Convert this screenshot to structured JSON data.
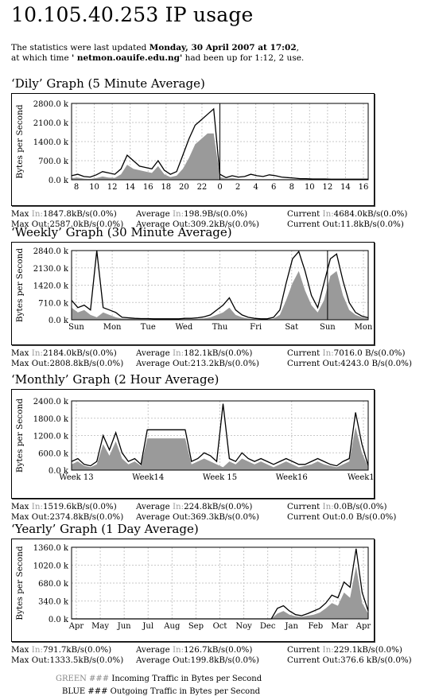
{
  "page": {
    "title": "10.105.40.253 IP usage",
    "intro_prefix": "The statistics were last updated ",
    "intro_date": "Monday, 30 April 2007 at 17:02",
    "intro_middle": ",",
    "intro_line2_prefix": "at which time ",
    "intro_host": "' netmon.oauife.edu.ng'",
    "intro_uptime": " had been up for 1:12, 2 use."
  },
  "colors": {
    "incoming": "#9a9a9a",
    "outgoing": "#000000",
    "grid": "#c8c8c8",
    "vline": "#000000"
  },
  "legend": {
    "green_label": "GREEN ###",
    "green_text": " Incoming Traffic in Bytes per Second",
    "blue_label": "BLUE ###",
    "blue_text": " Outgoing Traffic in Bytes per Second"
  },
  "chart_data": [
    {
      "type": "area",
      "title": "‘Dily’ Graph (5 Minute Average)",
      "ylabel": "Bytes per Second",
      "ylim": [
        0,
        2800
      ],
      "yticks": [
        "0.0 k",
        "700.0 k",
        "1400.0 k",
        "2100.0 k",
        "2800.0 k"
      ],
      "xticks": [
        "8",
        "10",
        "12",
        "14",
        "16",
        "18",
        "20",
        "22",
        "0",
        "2",
        "4",
        "6",
        "8",
        "10",
        "12",
        "14",
        "16"
      ],
      "vline_index": 8,
      "series": [
        {
          "name": "In",
          "values": [
            60,
            80,
            40,
            30,
            60,
            120,
            80,
            70,
            200,
            550,
            400,
            350,
            300,
            250,
            500,
            200,
            100,
            150,
            400,
            800,
            1300,
            1500,
            1700,
            1700,
            100,
            40,
            60,
            30,
            20,
            20,
            20,
            20,
            20,
            20,
            20,
            20,
            20,
            20,
            20,
            20,
            20,
            20,
            20,
            20,
            20,
            20,
            20,
            20,
            20
          ]
        },
        {
          "name": "Out",
          "values": [
            150,
            200,
            120,
            100,
            180,
            300,
            250,
            200,
            400,
            900,
            700,
            500,
            450,
            400,
            700,
            350,
            200,
            300,
            900,
            1500,
            2000,
            2200,
            2400,
            2600,
            200,
            80,
            150,
            100,
            120,
            200,
            150,
            120,
            180,
            150,
            100,
            80,
            60,
            40,
            40,
            30,
            30,
            30,
            20,
            20,
            20,
            20,
            20,
            20,
            20
          ]
        }
      ],
      "stats": {
        "max_in": "1847.8kB/s(0.0%)",
        "avg_in": "198.9B/s(0.0%)",
        "cur_in": "4684.0kB/s(0.0%)",
        "max_out": "2587.0kB/s(0.0%)",
        "avg_out": "309.2kB/s(0.0%)",
        "cur_out": "11.8kB/s(0.0%)"
      }
    },
    {
      "type": "area",
      "title": "‘Weekly’ Graph (30 Minute Average)",
      "ylabel": "Bytes per Second",
      "ylim": [
        0,
        2840
      ],
      "yticks": [
        "0.0 k",
        "710.0 k",
        "1420.0 k",
        "2130.0 k",
        "2840.0 k"
      ],
      "xticks": [
        "Sun",
        "Mon",
        "Tue",
        "Wed",
        "Thu",
        "Fri",
        "Sat",
        "Sun",
        "Mon"
      ],
      "vline_index": 7,
      "series": [
        {
          "name": "In",
          "values": [
            500,
            300,
            400,
            200,
            100,
            300,
            200,
            100,
            50,
            50,
            40,
            30,
            30,
            20,
            20,
            20,
            20,
            20,
            30,
            30,
            40,
            60,
            100,
            200,
            300,
            500,
            200,
            100,
            50,
            30,
            20,
            20,
            50,
            200,
            800,
            1500,
            2000,
            1200,
            600,
            300,
            800,
            1800,
            2000,
            1000,
            400,
            200,
            100,
            50
          ]
        },
        {
          "name": "Out",
          "values": [
            800,
            500,
            600,
            400,
            2840,
            500,
            400,
            300,
            100,
            80,
            60,
            50,
            50,
            40,
            40,
            40,
            40,
            40,
            60,
            60,
            80,
            120,
            200,
            400,
            600,
            900,
            400,
            200,
            100,
            60,
            40,
            40,
            100,
            400,
            1500,
            2500,
            2800,
            2000,
            1000,
            500,
            1500,
            2500,
            2700,
            1600,
            700,
            300,
            150,
            80
          ]
        }
      ],
      "stats": {
        "max_in": "2184.0kB/s(0.0%)",
        "avg_in": "182.1kB/s(0.0%)",
        "cur_in": "7016.0 B/s(0.0%)",
        "max_out": "2808.8kB/s(0.0%)",
        "avg_out": "213.2kB/s(0.0%)",
        "cur_out": "4243.0 B/s(0.0%)"
      }
    },
    {
      "type": "area",
      "title": "‘Monthly’ Graph (2 Hour Average)",
      "ylabel": "Bytes per Second",
      "ylim": [
        0,
        2400
      ],
      "yticks": [
        "0.0 k",
        "600.0 k",
        "1200.0 k",
        "1800.0 k",
        "2400.0 k"
      ],
      "xticks": [
        "Week 13",
        "Week14",
        "Week 15",
        "Week16",
        "Week17"
      ],
      "series": [
        {
          "name": "In",
          "values": [
            200,
            300,
            150,
            100,
            200,
            900,
            500,
            1000,
            400,
            200,
            300,
            150,
            1100,
            1100,
            1100,
            1100,
            1100,
            1100,
            1100,
            200,
            300,
            400,
            300,
            200,
            100,
            300,
            200,
            400,
            300,
            200,
            300,
            200,
            100,
            200,
            300,
            200,
            100,
            150,
            200,
            300,
            200,
            150,
            100,
            200,
            300,
            1500,
            600,
            100
          ]
        },
        {
          "name": "Out",
          "values": [
            300,
            400,
            200,
            150,
            300,
            1200,
            700,
            1300,
            600,
            300,
            400,
            200,
            1400,
            1400,
            1400,
            1400,
            1400,
            1400,
            1400,
            300,
            400,
            600,
            500,
            300,
            2300,
            400,
            300,
            600,
            400,
            300,
            400,
            300,
            200,
            300,
            400,
            300,
            200,
            200,
            300,
            400,
            300,
            200,
            150,
            300,
            400,
            2000,
            900,
            150
          ]
        }
      ],
      "stats": {
        "max_in": "1519.6kB/s(0.0%)",
        "avg_in": "224.8kB/s(0.0%)",
        "cur_in": "0.0B/s(0.0%)",
        "max_out": "2374.8kB/s(0.0%)",
        "avg_out": "369.3kB/s(0.0%)",
        "cur_out": "0.0 B/s(0.0%)"
      }
    },
    {
      "type": "area",
      "title": "‘Yearly’ Graph (1 Day Average)",
      "ylabel": "Bytes per Second",
      "ylim": [
        0,
        1360
      ],
      "yticks": [
        "0.0 k",
        "340.0 k",
        "680.0 k",
        "1020.0 k",
        "1360.0 k"
      ],
      "xticks": [
        "Apr",
        "May",
        "Jun",
        "Jul",
        "Aug",
        "Sep",
        "Oct",
        "Noy",
        "Dec",
        "Jan",
        "Feb",
        "Mar",
        "Apr"
      ],
      "series": [
        {
          "name": "In",
          "values": [
            0,
            0,
            0,
            0,
            0,
            0,
            0,
            0,
            0,
            0,
            0,
            0,
            0,
            0,
            0,
            0,
            0,
            0,
            0,
            0,
            0,
            0,
            0,
            0,
            0,
            0,
            0,
            0,
            0,
            0,
            0,
            0,
            0,
            0,
            100,
            150,
            80,
            50,
            40,
            60,
            80,
            120,
            200,
            300,
            250,
            500,
            400,
            1000,
            300,
            100
          ]
        },
        {
          "name": "Out",
          "values": [
            0,
            0,
            0,
            0,
            0,
            0,
            0,
            0,
            0,
            0,
            0,
            0,
            0,
            0,
            0,
            0,
            0,
            0,
            0,
            0,
            0,
            0,
            0,
            0,
            0,
            0,
            0,
            0,
            0,
            0,
            0,
            0,
            0,
            0,
            200,
            250,
            150,
            80,
            60,
            100,
            150,
            200,
            300,
            450,
            400,
            700,
            600,
            1333,
            500,
            150
          ]
        }
      ],
      "stats": {
        "max_in": "791.7kB/s(0.0%)",
        "avg_in": "126.7kB/s(0.0%)",
        "cur_in": "229.1kB/s(0.0%)",
        "max_out": "1333.5kB/s(0.0%)",
        "avg_out": "199.8kB/s(0.0%)",
        "cur_out": "376.6 kB/s(0.0%)"
      }
    }
  ],
  "labels": {
    "max": "Max",
    "average": "Average",
    "current": "Current",
    "in": "In:",
    "max_out": "Max Out:",
    "average_out": "Average Out:",
    "current_out": "Current Out:"
  }
}
